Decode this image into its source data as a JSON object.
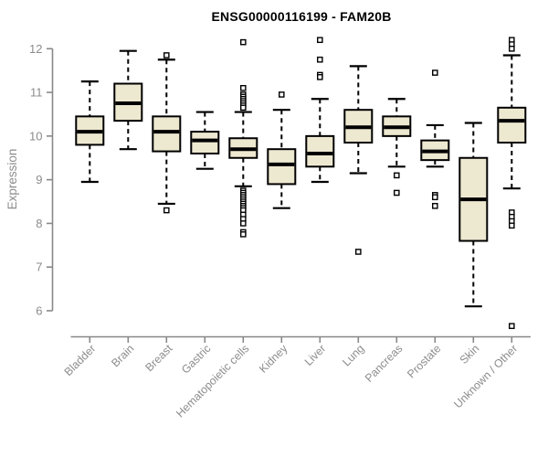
{
  "title": "ENSG00000116199 - FAM20B",
  "chart_data": {
    "type": "boxplot",
    "title": "ENSG00000116199 - FAM20B",
    "ylabel": "Expression",
    "xlabel": "",
    "ylim": [
      5.5,
      12.3
    ],
    "yticks": [
      6,
      7,
      8,
      9,
      10,
      11,
      12
    ],
    "grid": false,
    "legend": "none",
    "categories": [
      "Bladder",
      "Brain",
      "Breast",
      "Gastric",
      "Hematopoietic cells",
      "Kidney",
      "Liver",
      "Lung",
      "Pancreas",
      "Prostate",
      "Skin",
      "Unknown / Other"
    ],
    "series": [
      {
        "name": "Bladder",
        "whisker_low": 8.95,
        "q1": 9.8,
        "median": 10.1,
        "q3": 10.45,
        "whisker_high": 11.25,
        "outliers": []
      },
      {
        "name": "Brain",
        "whisker_low": 9.7,
        "q1": 10.35,
        "median": 10.75,
        "q3": 11.2,
        "whisker_high": 11.95,
        "outliers": []
      },
      {
        "name": "Breast",
        "whisker_low": 8.45,
        "q1": 9.65,
        "median": 10.1,
        "q3": 10.45,
        "whisker_high": 11.75,
        "outliers": [
          11.85,
          8.3
        ]
      },
      {
        "name": "Gastric",
        "whisker_low": 9.25,
        "q1": 9.6,
        "median": 9.9,
        "q3": 10.1,
        "whisker_high": 10.55,
        "outliers": []
      },
      {
        "name": "Hematopoietic cells",
        "whisker_low": 8.85,
        "q1": 9.5,
        "median": 9.7,
        "q3": 9.95,
        "whisker_high": 10.55,
        "outliers": [
          12.15,
          11.1,
          10.95,
          10.9,
          10.85,
          10.8,
          10.75,
          10.7,
          10.65,
          8.75,
          8.7,
          8.65,
          8.6,
          8.55,
          8.5,
          8.45,
          8.4,
          8.35,
          8.3,
          8.2,
          8.1,
          8.0,
          7.8,
          7.75
        ]
      },
      {
        "name": "Kidney",
        "whisker_low": 8.35,
        "q1": 8.9,
        "median": 9.35,
        "q3": 9.7,
        "whisker_high": 10.6,
        "outliers": [
          10.95
        ]
      },
      {
        "name": "Liver",
        "whisker_low": 8.95,
        "q1": 9.3,
        "median": 9.6,
        "q3": 10.0,
        "whisker_high": 10.85,
        "outliers": [
          12.2,
          11.75,
          11.4,
          11.35
        ]
      },
      {
        "name": "Lung",
        "whisker_low": 9.15,
        "q1": 9.85,
        "median": 10.2,
        "q3": 10.6,
        "whisker_high": 11.6,
        "outliers": [
          7.35
        ]
      },
      {
        "name": "Pancreas",
        "whisker_low": 9.3,
        "q1": 10.0,
        "median": 10.2,
        "q3": 10.45,
        "whisker_high": 10.85,
        "outliers": [
          9.1,
          8.7
        ]
      },
      {
        "name": "Prostate",
        "whisker_low": 9.3,
        "q1": 9.45,
        "median": 9.65,
        "q3": 9.9,
        "whisker_high": 10.25,
        "outliers": [
          11.45,
          8.65,
          8.6,
          8.4
        ]
      },
      {
        "name": "Skin",
        "whisker_low": 6.1,
        "q1": 7.6,
        "median": 8.55,
        "q3": 9.5,
        "whisker_high": 10.3,
        "outliers": []
      },
      {
        "name": "Unknown / Other",
        "whisker_low": 8.8,
        "q1": 9.85,
        "median": 10.35,
        "q3": 10.65,
        "whisker_high": 11.85,
        "outliers": [
          12.2,
          12.1,
          12.0,
          8.25,
          8.15,
          8.05,
          7.95,
          5.65
        ]
      }
    ],
    "colors": {
      "box_fill": "#EDE8D0",
      "box_border": "#000000",
      "median": "#000000",
      "whisker": "#000000",
      "outlier_fill": "#ffffff",
      "axis": "#888888",
      "tick_label": "#8c8c8c",
      "title": "#000000"
    }
  }
}
